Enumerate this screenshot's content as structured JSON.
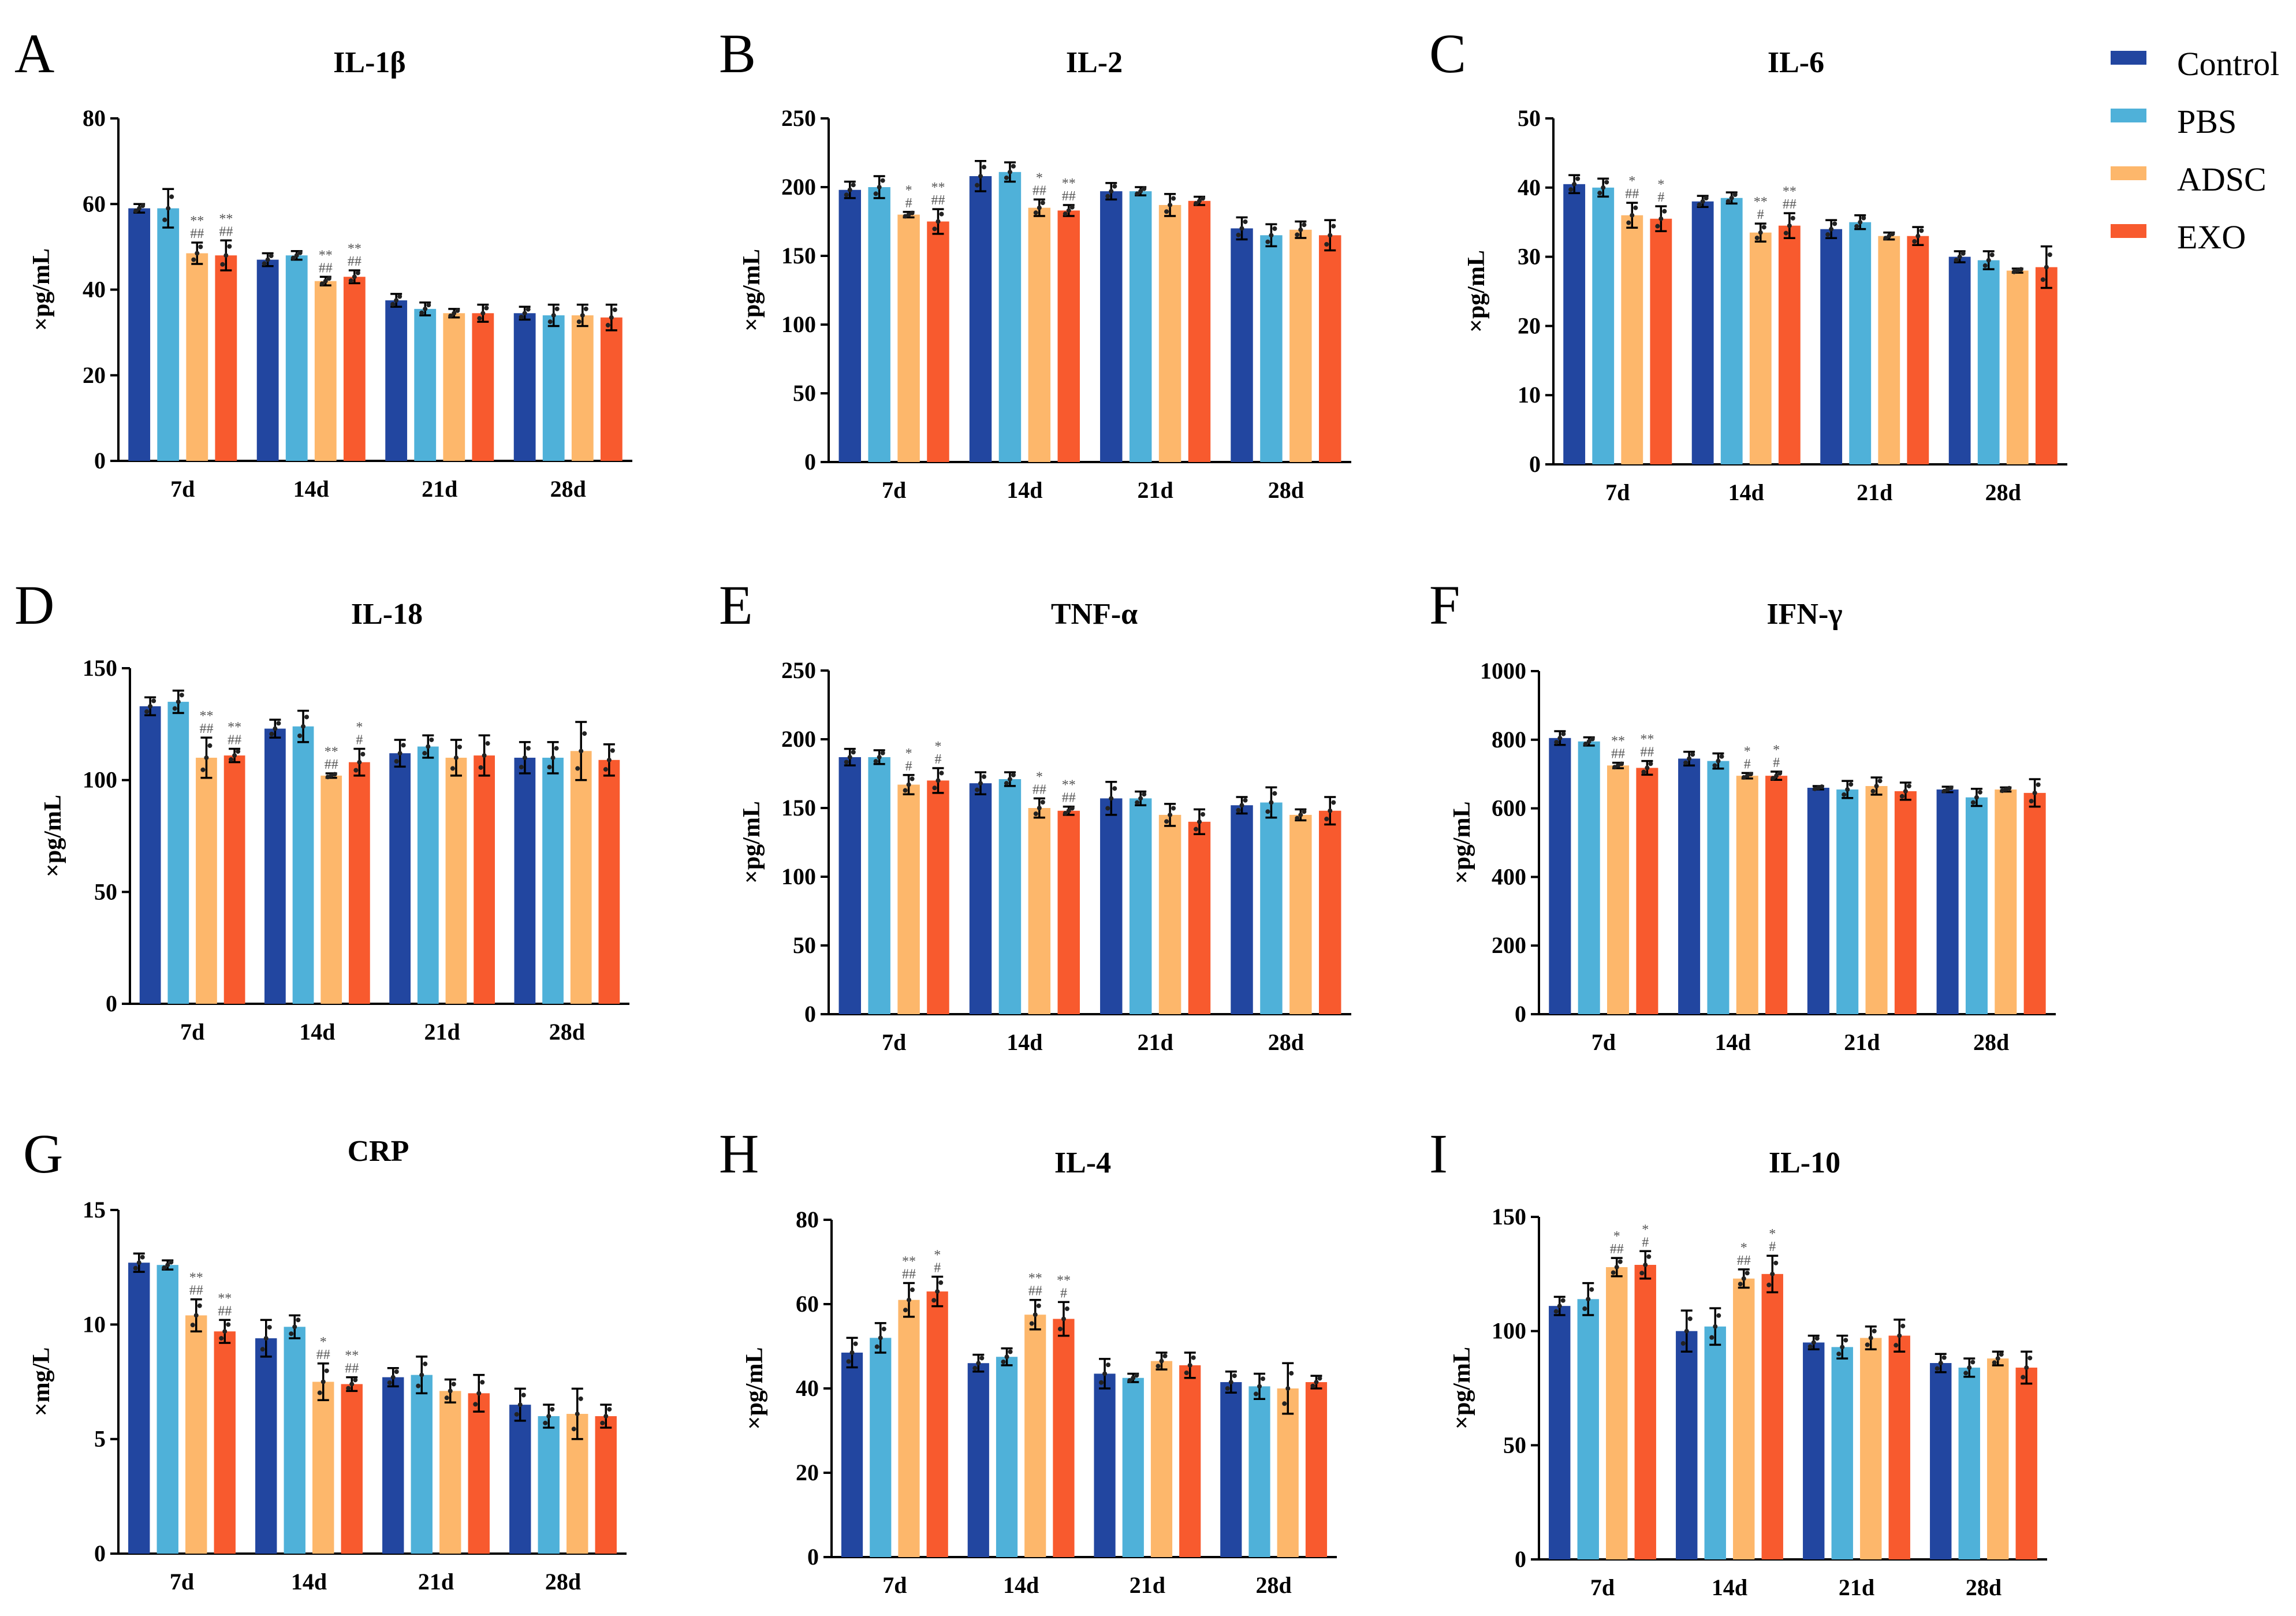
{
  "legend": {
    "entries": [
      {
        "name": "Control",
        "color": "#2246a0"
      },
      {
        "name": "PBS",
        "color": "#4fb1d9"
      },
      {
        "name": "ADSC",
        "color": "#fdb76b"
      },
      {
        "name": "EXO",
        "color": "#f85a2e"
      }
    ]
  },
  "chart_data": [
    {
      "type": "bar",
      "letter": "A",
      "title": "IL-1β",
      "ylabel": "×pg/mL",
      "ylim": [
        0,
        80
      ],
      "yticks": [
        0,
        20,
        40,
        60,
        80
      ],
      "categories": [
        "7d",
        "14d",
        "21d",
        "28d"
      ],
      "series": [
        {
          "name": "Control",
          "values": [
            59,
            47,
            37.5,
            34.5
          ],
          "errors": [
            1,
            1.5,
            1.5,
            1.5
          ]
        },
        {
          "name": "PBS",
          "values": [
            59,
            48,
            35.5,
            34
          ],
          "errors": [
            4.5,
            1,
            1.5,
            2.5
          ]
        },
        {
          "name": "ADSC",
          "values": [
            48.5,
            42,
            34.5,
            34
          ],
          "errors": [
            2.5,
            1,
            1,
            2.5
          ]
        },
        {
          "name": "EXO",
          "values": [
            48,
            43,
            34.5,
            33.5
          ],
          "errors": [
            3.5,
            1.5,
            2,
            3
          ]
        }
      ],
      "annotations": [
        {
          "category": "7d",
          "series": "ADSC",
          "lines": [
            "**",
            "##"
          ]
        },
        {
          "category": "7d",
          "series": "EXO",
          "lines": [
            "**",
            "##"
          ]
        },
        {
          "category": "14d",
          "series": "ADSC",
          "lines": [
            "**",
            "##"
          ]
        },
        {
          "category": "14d",
          "series": "EXO",
          "lines": [
            "**",
            "##"
          ]
        }
      ]
    },
    {
      "type": "bar",
      "letter": "B",
      "title": "IL-2",
      "ylabel": "×pg/mL",
      "ylim": [
        0,
        250
      ],
      "yticks": [
        0,
        50,
        100,
        150,
        200,
        250
      ],
      "categories": [
        "7d",
        "14d",
        "21d",
        "28d"
      ],
      "series": [
        {
          "name": "Control",
          "values": [
            198,
            208,
            197,
            170
          ],
          "errors": [
            6,
            11,
            6,
            8
          ]
        },
        {
          "name": "PBS",
          "values": [
            200,
            211,
            197,
            165
          ],
          "errors": [
            8,
            7,
            3,
            8
          ]
        },
        {
          "name": "ADSC",
          "values": [
            180,
            185,
            187,
            169
          ],
          "errors": [
            2,
            6,
            8,
            6
          ]
        },
        {
          "name": "EXO",
          "values": [
            175,
            183,
            190,
            165
          ],
          "errors": [
            9,
            4,
            3,
            11
          ]
        }
      ],
      "annotations": [
        {
          "category": "7d",
          "series": "ADSC",
          "lines": [
            "*",
            "#"
          ]
        },
        {
          "category": "7d",
          "series": "EXO",
          "lines": [
            "**",
            "##"
          ]
        },
        {
          "category": "14d",
          "series": "ADSC",
          "lines": [
            "*",
            "##"
          ]
        },
        {
          "category": "14d",
          "series": "EXO",
          "lines": [
            "**",
            "##"
          ]
        }
      ]
    },
    {
      "type": "bar",
      "letter": "C",
      "title": "IL-6",
      "ylabel": "×pg/mL",
      "ylim": [
        0,
        50
      ],
      "yticks": [
        0,
        10,
        20,
        30,
        40,
        50
      ],
      "categories": [
        "7d",
        "14d",
        "21d",
        "28d"
      ],
      "series": [
        {
          "name": "Control",
          "values": [
            40.5,
            38,
            34,
            30
          ],
          "errors": [
            1.3,
            0.8,
            1.3,
            0.8
          ]
        },
        {
          "name": "PBS",
          "values": [
            40,
            38.5,
            35,
            29.5
          ],
          "errors": [
            1.3,
            0.8,
            1,
            1.3
          ]
        },
        {
          "name": "ADSC",
          "values": [
            36,
            33.5,
            33,
            28
          ],
          "errors": [
            1.8,
            1.3,
            0.5,
            0.3
          ]
        },
        {
          "name": "EXO",
          "values": [
            35.5,
            34.5,
            33,
            28.5
          ],
          "errors": [
            1.8,
            1.8,
            1.3,
            3
          ]
        }
      ],
      "annotations": [
        {
          "category": "7d",
          "series": "ADSC",
          "lines": [
            "*",
            "##"
          ]
        },
        {
          "category": "7d",
          "series": "EXO",
          "lines": [
            "*",
            "#"
          ]
        },
        {
          "category": "14d",
          "series": "ADSC",
          "lines": [
            "**",
            "#"
          ]
        },
        {
          "category": "14d",
          "series": "EXO",
          "lines": [
            "**",
            "##"
          ]
        }
      ]
    },
    {
      "type": "bar",
      "letter": "D",
      "title": "IL-18",
      "ylabel": "×pg/mL",
      "ylim": [
        0,
        150
      ],
      "yticks": [
        0,
        50,
        100,
        150
      ],
      "categories": [
        "7d",
        "14d",
        "21d",
        "28d"
      ],
      "series": [
        {
          "name": "Control",
          "values": [
            133,
            123,
            112,
            110
          ],
          "errors": [
            4,
            4,
            6,
            7
          ]
        },
        {
          "name": "PBS",
          "values": [
            135,
            124,
            115,
            110
          ],
          "errors": [
            5,
            7,
            5,
            7
          ]
        },
        {
          "name": "ADSC",
          "values": [
            110,
            102,
            110,
            113
          ],
          "errors": [
            9,
            1,
            8,
            13
          ]
        },
        {
          "name": "EXO",
          "values": [
            111,
            108,
            111,
            109
          ],
          "errors": [
            3,
            6,
            9,
            7
          ]
        }
      ],
      "annotations": [
        {
          "category": "7d",
          "series": "ADSC",
          "lines": [
            "**",
            "##"
          ]
        },
        {
          "category": "7d",
          "series": "EXO",
          "lines": [
            "**",
            "##"
          ]
        },
        {
          "category": "14d",
          "series": "ADSC",
          "lines": [
            "**",
            "##"
          ]
        },
        {
          "category": "14d",
          "series": "EXO",
          "lines": [
            "*",
            "#"
          ]
        }
      ]
    },
    {
      "type": "bar",
      "letter": "E",
      "title": "TNF-α",
      "ylabel": "×pg/mL",
      "ylim": [
        0,
        250
      ],
      "yticks": [
        0,
        50,
        100,
        150,
        200,
        250
      ],
      "categories": [
        "7d",
        "14d",
        "21d",
        "28d"
      ],
      "series": [
        {
          "name": "Control",
          "values": [
            187,
            168,
            157,
            152
          ],
          "errors": [
            6,
            8,
            12,
            6
          ]
        },
        {
          "name": "PBS",
          "values": [
            187,
            171,
            157,
            154
          ],
          "errors": [
            5,
            5,
            5,
            11
          ]
        },
        {
          "name": "ADSC",
          "values": [
            167,
            150,
            145,
            145
          ],
          "errors": [
            7,
            7,
            8,
            4
          ]
        },
        {
          "name": "EXO",
          "values": [
            170,
            148,
            140,
            148
          ],
          "errors": [
            9,
            3,
            9,
            10
          ]
        }
      ],
      "annotations": [
        {
          "category": "7d",
          "series": "ADSC",
          "lines": [
            "*",
            "#"
          ]
        },
        {
          "category": "7d",
          "series": "EXO",
          "lines": [
            "*",
            "#"
          ]
        },
        {
          "category": "14d",
          "series": "ADSC",
          "lines": [
            "*",
            "##"
          ]
        },
        {
          "category": "14d",
          "series": "EXO",
          "lines": [
            "**",
            "##"
          ]
        }
      ]
    },
    {
      "type": "bar",
      "letter": "F",
      "title": "IFN-γ",
      "ylabel": "×pg/mL",
      "ylim": [
        0,
        1000
      ],
      "yticks": [
        0,
        200,
        400,
        600,
        800,
        1000
      ],
      "categories": [
        "7d",
        "14d",
        "21d",
        "28d"
      ],
      "series": [
        {
          "name": "Control",
          "values": [
            805,
            745,
            660,
            655
          ],
          "errors": [
            20,
            20,
            5,
            8
          ]
        },
        {
          "name": "PBS",
          "values": [
            795,
            738,
            655,
            632
          ],
          "errors": [
            12,
            22,
            25,
            25
          ]
        },
        {
          "name": "ADSC",
          "values": [
            725,
            695,
            665,
            655
          ],
          "errors": [
            8,
            8,
            25,
            6
          ]
        },
        {
          "name": "EXO",
          "values": [
            718,
            695,
            650,
            645
          ],
          "errors": [
            20,
            12,
            25,
            40
          ]
        }
      ],
      "annotations": [
        {
          "category": "7d",
          "series": "ADSC",
          "lines": [
            "**",
            "##"
          ]
        },
        {
          "category": "7d",
          "series": "EXO",
          "lines": [
            "**",
            "##"
          ]
        },
        {
          "category": "14d",
          "series": "ADSC",
          "lines": [
            "*",
            "#"
          ]
        },
        {
          "category": "14d",
          "series": "EXO",
          "lines": [
            "*",
            "#"
          ]
        }
      ]
    },
    {
      "type": "bar",
      "letter": "G",
      "title": "CRP",
      "ylabel": "×mg/L",
      "ylim": [
        0,
        15
      ],
      "yticks": [
        0,
        5,
        10,
        15
      ],
      "categories": [
        "7d",
        "14d",
        "21d",
        "28d"
      ],
      "series": [
        {
          "name": "Control",
          "values": [
            12.7,
            9.4,
            7.7,
            6.5
          ],
          "errors": [
            0.4,
            0.8,
            0.4,
            0.7
          ]
        },
        {
          "name": "PBS",
          "values": [
            12.6,
            9.9,
            7.8,
            6.0
          ],
          "errors": [
            0.2,
            0.5,
            0.8,
            0.5
          ]
        },
        {
          "name": "ADSC",
          "values": [
            10.4,
            7.5,
            7.1,
            6.1
          ],
          "errors": [
            0.7,
            0.8,
            0.5,
            1.1
          ]
        },
        {
          "name": "EXO",
          "values": [
            9.7,
            7.4,
            7.0,
            6.0
          ],
          "errors": [
            0.5,
            0.3,
            0.8,
            0.5
          ]
        }
      ],
      "annotations": [
        {
          "category": "7d",
          "series": "ADSC",
          "lines": [
            "**",
            "##"
          ]
        },
        {
          "category": "7d",
          "series": "EXO",
          "lines": [
            "**",
            "##"
          ]
        },
        {
          "category": "14d",
          "series": "ADSC",
          "lines": [
            "*",
            "##"
          ]
        },
        {
          "category": "14d",
          "series": "EXO",
          "lines": [
            "**",
            "##"
          ]
        }
      ]
    },
    {
      "type": "bar",
      "letter": "H",
      "title": "IL-4",
      "ylabel": "×pg/mL",
      "ylim": [
        0,
        80
      ],
      "yticks": [
        0,
        20,
        40,
        60,
        80
      ],
      "categories": [
        "7d",
        "14d",
        "21d",
        "28d"
      ],
      "series": [
        {
          "name": "Control",
          "values": [
            48.5,
            46,
            43.5,
            41.5
          ],
          "errors": [
            3.5,
            2,
            3.5,
            2.5
          ]
        },
        {
          "name": "PBS",
          "values": [
            52,
            47.5,
            42.5,
            40.5
          ],
          "errors": [
            3.5,
            2,
            1,
            3
          ]
        },
        {
          "name": "ADSC",
          "values": [
            61,
            57.5,
            46.5,
            40
          ],
          "errors": [
            4,
            3.5,
            2,
            6
          ]
        },
        {
          "name": "EXO",
          "values": [
            63,
            56.5,
            45.5,
            41.5
          ],
          "errors": [
            3.5,
            4,
            3,
            1.5
          ]
        }
      ],
      "annotations": [
        {
          "category": "7d",
          "series": "ADSC",
          "lines": [
            "**",
            "##"
          ]
        },
        {
          "category": "7d",
          "series": "EXO",
          "lines": [
            "*",
            "#"
          ]
        },
        {
          "category": "14d",
          "series": "ADSC",
          "lines": [
            "**",
            "##"
          ]
        },
        {
          "category": "14d",
          "series": "EXO",
          "lines": [
            "**",
            "#"
          ]
        }
      ]
    },
    {
      "type": "bar",
      "letter": "I",
      "title": "IL-10",
      "ylabel": "×pg/mL",
      "ylim": [
        0,
        150
      ],
      "yticks": [
        0,
        50,
        100,
        150
      ],
      "categories": [
        "7d",
        "14d",
        "21d",
        "28d"
      ],
      "series": [
        {
          "name": "Control",
          "values": [
            111,
            100,
            95,
            86
          ],
          "errors": [
            4,
            9,
            3,
            4
          ]
        },
        {
          "name": "PBS",
          "values": [
            114,
            102,
            93,
            84
          ],
          "errors": [
            7,
            8,
            5,
            4
          ]
        },
        {
          "name": "ADSC",
          "values": [
            128,
            123,
            97,
            88
          ],
          "errors": [
            4,
            4,
            5,
            3
          ]
        },
        {
          "name": "EXO",
          "values": [
            129,
            125,
            98,
            84
          ],
          "errors": [
            6,
            8,
            7,
            7
          ]
        }
      ],
      "annotations": [
        {
          "category": "7d",
          "series": "ADSC",
          "lines": [
            "*",
            "##"
          ]
        },
        {
          "category": "7d",
          "series": "EXO",
          "lines": [
            "*",
            "#"
          ]
        },
        {
          "category": "14d",
          "series": "ADSC",
          "lines": [
            "*",
            "##"
          ]
        },
        {
          "category": "14d",
          "series": "EXO",
          "lines": [
            "*",
            "#"
          ]
        }
      ]
    }
  ]
}
